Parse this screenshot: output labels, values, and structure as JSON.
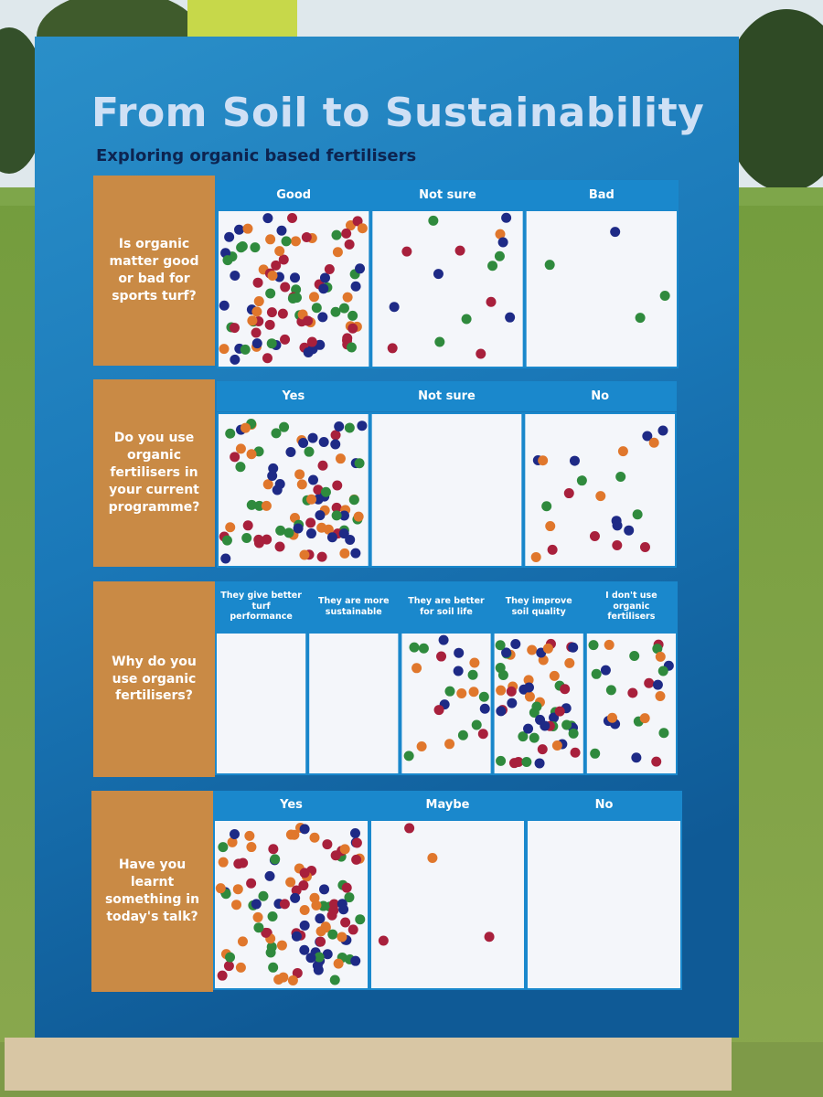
{
  "title": "From Soil to Sustainability",
  "subtitle": "Exploring organic based fertilisers",
  "questions": [
    {
      "question": "Is organic matter good or bad for sports turf?",
      "options": [
        "Good",
        "Not sure",
        "Bad"
      ]
    },
    {
      "question": "Do you use organic fertilisers in your current programme?",
      "options": [
        "Yes",
        "Not sure",
        "No"
      ]
    },
    {
      "question": "Why do you use organic fertilisers?",
      "options": [
        "They give better turf performance",
        "They are more sustainable",
        "They are better for soil life",
        "They improve soil quality",
        "I don't use organic fertilisers"
      ]
    },
    {
      "question": "Have you learnt something in today's talk?",
      "options": [
        "Yes",
        "Maybe",
        "No"
      ]
    }
  ]
}
